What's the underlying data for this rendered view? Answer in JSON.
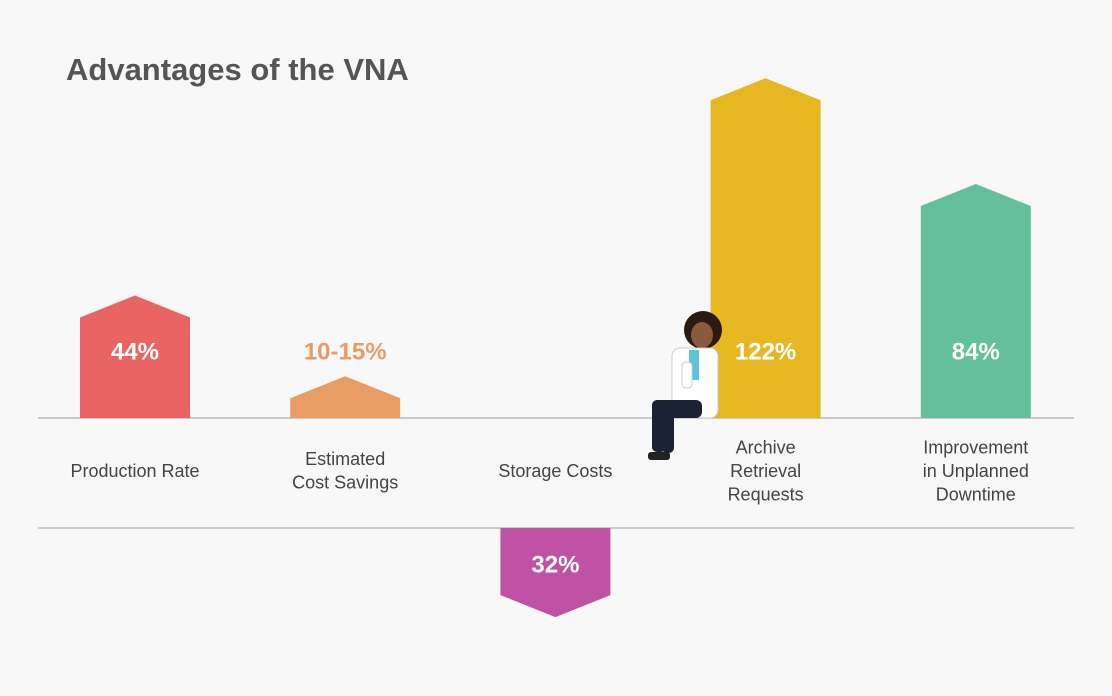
{
  "chart_data": {
    "type": "arrow-bar",
    "title": "Advantages of the VNA",
    "categories": [
      [
        "Production Rate"
      ],
      [
        "Estimated",
        "Cost Savings"
      ],
      [
        "Storage Costs"
      ],
      [
        "Archive",
        "Retrieval",
        "Requests"
      ],
      [
        "Improvement",
        "in Unplanned",
        "Downtime"
      ]
    ],
    "values": [
      44,
      15,
      32,
      122,
      84
    ],
    "value_labels": [
      "44%",
      "10-15%",
      "32%",
      "122%",
      "84%"
    ],
    "directions": [
      "up",
      "up",
      "down",
      "up",
      "up"
    ],
    "colors": [
      "#e96563",
      "#e99d64",
      "#c052a5",
      "#e6b721",
      "#63bf9c"
    ]
  }
}
